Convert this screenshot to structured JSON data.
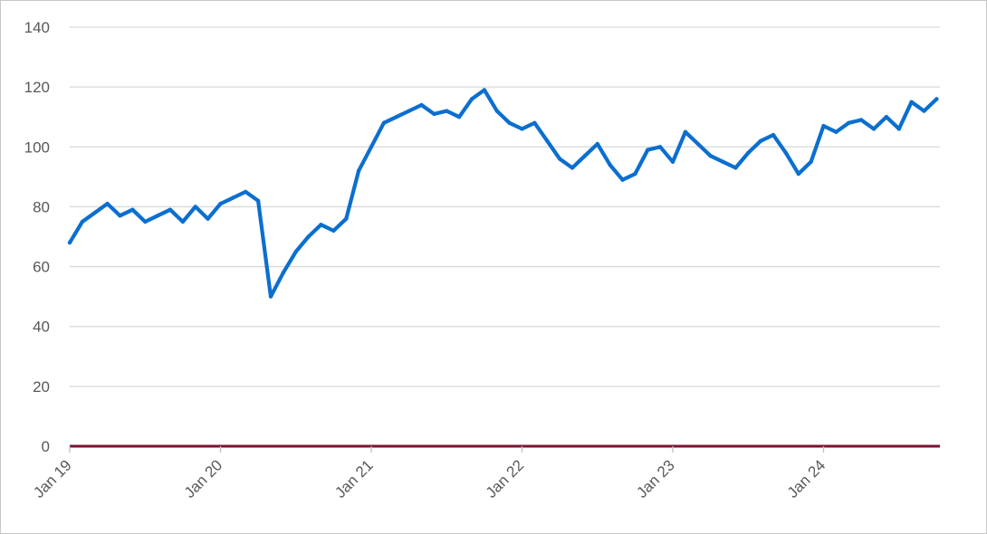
{
  "chart_data": {
    "type": "line",
    "title": "",
    "xlabel": "",
    "ylabel": "",
    "ylim": [
      0,
      140
    ],
    "y_ticks": [
      0,
      20,
      40,
      60,
      80,
      100,
      120,
      140
    ],
    "x_tick_labels": [
      "Jan 19",
      "Jan 20",
      "Jan 21",
      "Jan 22",
      "Jan 23",
      "Jan 24"
    ],
    "x_range": [
      "2019-01",
      "2024-10"
    ],
    "grid": true,
    "legend": "none",
    "colors": {
      "series": "#0b6fcf",
      "baseline": "#7b1030",
      "grid": "#d9d9d9",
      "text": "#595959"
    },
    "series": [
      {
        "x": [
          "2019-01",
          "2019-02",
          "2019-03",
          "2019-04",
          "2019-05",
          "2019-06",
          "2019-07",
          "2019-08",
          "2019-09",
          "2019-10",
          "2019-11",
          "2019-12",
          "2020-01",
          "2020-02",
          "2020-03",
          "2020-04",
          "2020-05",
          "2020-06",
          "2020-07",
          "2020-08",
          "2020-09",
          "2020-10",
          "2020-11",
          "2020-12",
          "2021-01",
          "2021-02",
          "2021-03",
          "2021-04",
          "2021-05",
          "2021-06",
          "2021-07",
          "2021-08",
          "2021-09",
          "2021-10",
          "2021-11",
          "2021-12",
          "2022-01",
          "2022-02",
          "2022-03",
          "2022-04",
          "2022-05",
          "2022-06",
          "2022-07",
          "2022-08",
          "2022-09",
          "2022-10",
          "2022-11",
          "2022-12",
          "2023-01",
          "2023-02",
          "2023-03",
          "2023-04",
          "2023-05",
          "2023-06",
          "2023-07",
          "2023-08",
          "2023-09",
          "2023-10",
          "2023-11",
          "2023-12",
          "2024-01",
          "2024-02",
          "2024-03",
          "2024-04",
          "2024-05",
          "2024-06",
          "2024-07",
          "2024-08",
          "2024-09",
          "2024-10"
        ],
        "values": [
          68,
          75,
          78,
          81,
          77,
          79,
          75,
          77,
          79,
          75,
          80,
          76,
          81,
          83,
          85,
          82,
          50,
          58,
          65,
          70,
          74,
          72,
          76,
          92,
          100,
          108,
          110,
          112,
          114,
          111,
          112,
          110,
          116,
          119,
          112,
          108,
          106,
          108,
          102,
          96,
          93,
          97,
          101,
          94,
          89,
          91,
          99,
          100,
          95,
          105,
          101,
          97,
          95,
          93,
          98,
          102,
          104,
          98,
          91,
          95,
          107,
          105,
          108,
          109,
          106,
          110,
          106,
          115,
          112,
          116
        ]
      }
    ]
  }
}
